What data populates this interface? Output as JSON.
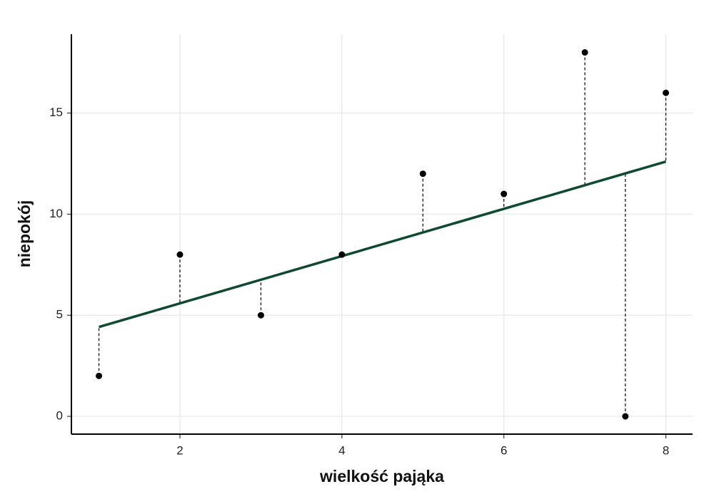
{
  "chart_data": {
    "type": "scatter",
    "x_label": "wielkość pająka",
    "y_label": "niepokój",
    "x": [
      1,
      2,
      3,
      4,
      5,
      6,
      7,
      7.5,
      8
    ],
    "values": [
      2,
      8,
      5,
      8,
      12,
      11,
      18,
      0,
      16
    ],
    "color": "#000000",
    "fit": {
      "x": [
        1,
        8
      ],
      "values": [
        4.42,
        12.6
      ],
      "color": "#0d4a2e"
    },
    "residuals": true,
    "xlim": [
      0.66,
      8.33
    ],
    "ylim": [
      -0.88,
      18.9
    ],
    "xticks": [
      2,
      4,
      6,
      8
    ],
    "yticks": [
      0,
      5,
      10,
      15
    ],
    "grid": true
  }
}
